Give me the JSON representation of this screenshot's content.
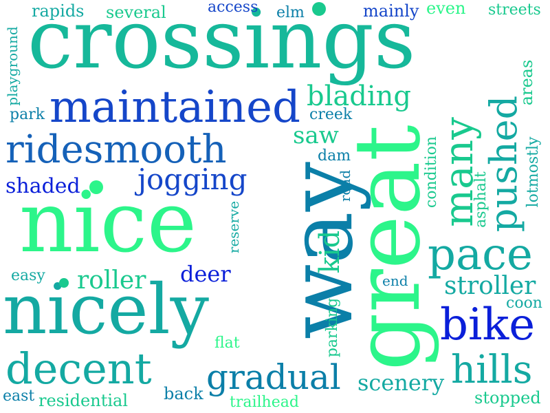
{
  "colors": {
    "blue": "#0a1fd9",
    "royal": "#1546c9",
    "teal": "#0b7fa8",
    "teal_light": "#14a9a2",
    "green": "#19c98e",
    "mint": "#2cf58a"
  },
  "words": {
    "crossings": "crossings",
    "nice": "nice",
    "way": "way",
    "great": "great",
    "nicely": "nicely",
    "maintained": "maintained",
    "ridesmooth": "ridesmooth",
    "many": "many",
    "pushed": "pushed",
    "pace": "pace",
    "bike": "bike",
    "decent": "decent",
    "gradual": "gradual",
    "hills": "hills",
    "jogging": "jogging",
    "blading": "blading",
    "stroller": "stroller",
    "roller": "roller",
    "kid": "kid",
    "shaded": "shaded",
    "deer": "deer",
    "saw": "saw",
    "scenery": "scenery",
    "areas": "areas",
    "lotmostly": "lotmostly",
    "condition": "condition",
    "asphalt": "asphalt",
    "parking": "parking",
    "reserve": "reserve",
    "road": "road",
    "playground": "playground",
    "rapids": "rapids",
    "several": "several",
    "access": "access",
    "elm": "elm",
    "mainly": "mainly",
    "even": "even",
    "streets": "streets",
    "park": "park",
    "creek": "creek",
    "dam": "dam",
    "easy": "easy",
    "end": "end",
    "coon": "coon",
    "flat": "flat",
    "back": "back",
    "east": "east",
    "residential": "residential",
    "trailhead": "trailhead",
    "stopped": "stopped"
  }
}
